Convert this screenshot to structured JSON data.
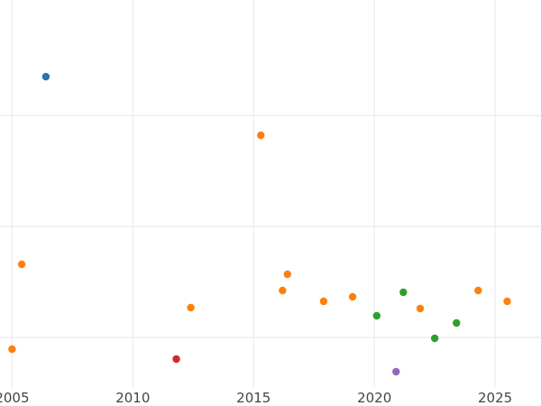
{
  "chart_data": {
    "type": "scatter",
    "title": "",
    "xlabel": "",
    "ylabel": "",
    "xlim": [
      2004.5,
      2026.9
    ],
    "ylim": [
      0,
      430
    ],
    "x_ticks": [
      2005,
      2010,
      2015,
      2020,
      2025
    ],
    "x_tick_labels": [
      "2005",
      "2010",
      "2015",
      "2020",
      "2025"
    ],
    "y_gridlines": [
      56,
      179,
      302
    ],
    "y_tick_labels_visible": false,
    "grid": true,
    "legend": "none",
    "series": [
      {
        "color": "#1f77b4",
        "points": [
          {
            "x": 2006.4,
            "y": 345
          }
        ]
      },
      {
        "color": "#ff7f0e",
        "points": [
          {
            "x": 2005.0,
            "y": 43
          },
          {
            "x": 2005.4,
            "y": 137
          },
          {
            "x": 2012.4,
            "y": 89
          },
          {
            "x": 2015.3,
            "y": 280
          },
          {
            "x": 2016.2,
            "y": 108
          },
          {
            "x": 2016.4,
            "y": 126
          },
          {
            "x": 2017.9,
            "y": 96
          },
          {
            "x": 2019.1,
            "y": 101
          },
          {
            "x": 2021.9,
            "y": 88
          },
          {
            "x": 2024.3,
            "y": 108
          },
          {
            "x": 2025.5,
            "y": 96
          }
        ]
      },
      {
        "color": "#2ca02c",
        "points": [
          {
            "x": 2020.1,
            "y": 80
          },
          {
            "x": 2021.2,
            "y": 106
          },
          {
            "x": 2022.5,
            "y": 55
          },
          {
            "x": 2023.4,
            "y": 72
          }
        ]
      },
      {
        "color": "#d62728",
        "points": [
          {
            "x": 2011.8,
            "y": 32
          }
        ]
      },
      {
        "color": "#9467bd",
        "points": [
          {
            "x": 2020.9,
            "y": 18
          }
        ]
      }
    ]
  }
}
